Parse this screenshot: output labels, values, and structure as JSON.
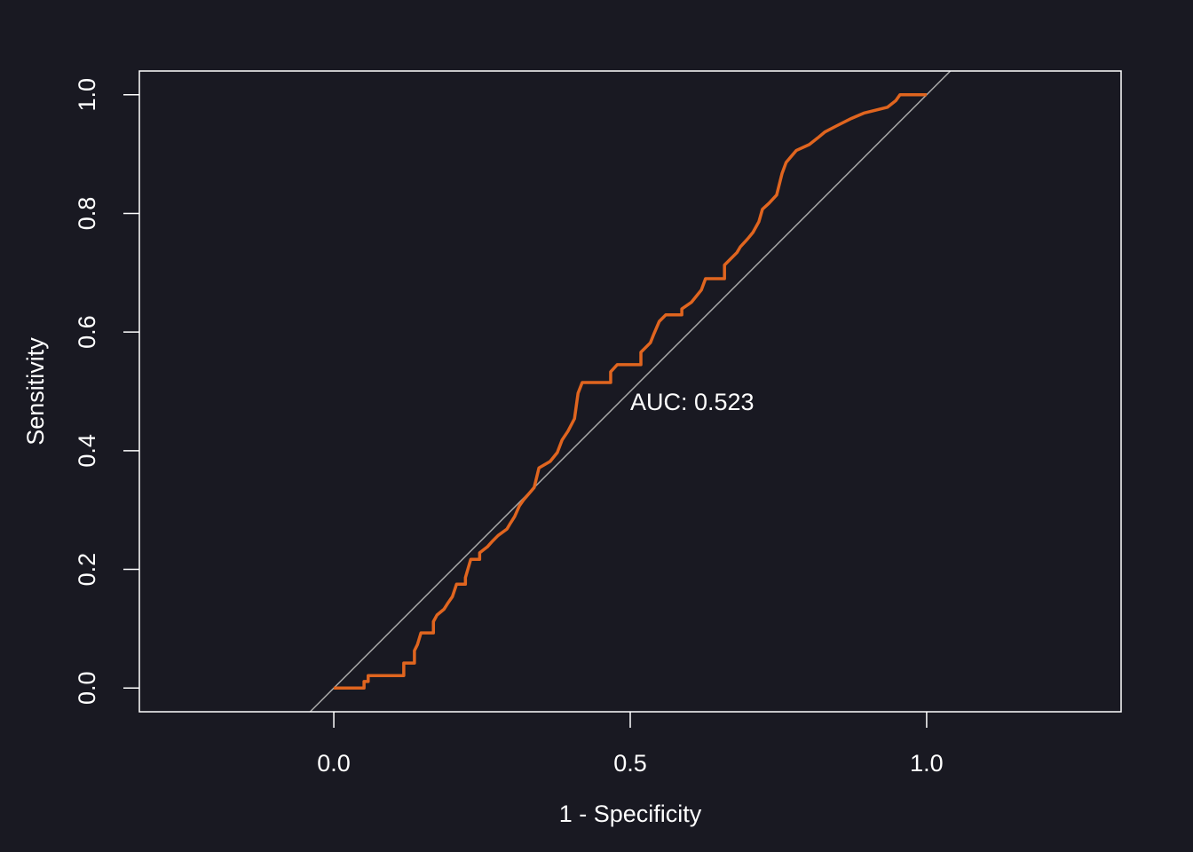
{
  "chart_data": {
    "type": "roc",
    "x_label": "1 - Specificity",
    "y_label": "Sensitivity",
    "annotation": "AUC: 0.523",
    "color": "#e0651f",
    "diagonal": true,
    "diagonal_color": "#a8a8a8",
    "xlim": [
      -0.328,
      1.328
    ],
    "ylim": [
      -0.04,
      1.04
    ],
    "xticks": [
      {
        "value": 0,
        "label": "0.0"
      },
      0.5,
      {
        "value": 1,
        "label": "1.0"
      }
    ],
    "yticks": [
      {
        "value": 0,
        "label": "0.0"
      },
      0.2,
      0.4,
      0.6,
      0.8,
      {
        "value": 1,
        "label": "1.0"
      }
    ],
    "x": [
      0,
      0.051,
      0.051,
      0.058,
      0.058,
      0.118,
      0.118,
      0.136,
      0.136,
      0.141,
      0.147,
      0.168,
      0.168,
      0.174,
      0.186,
      0.193,
      0.2,
      0.207,
      0.222,
      0.222,
      0.231,
      0.246,
      0.246,
      0.259,
      0.268,
      0.277,
      0.292,
      0.298,
      0.305,
      0.313,
      0.32,
      0.338,
      0.346,
      0.365,
      0.377,
      0.385,
      0.395,
      0.406,
      0.412,
      0.419,
      0.467,
      0.467,
      0.478,
      0.518,
      0.518,
      0.534,
      0.54,
      0.549,
      0.56,
      0.587,
      0.587,
      0.603,
      0.62,
      0.627,
      0.659,
      0.659,
      0.68,
      0.686,
      0.698,
      0.707,
      0.717,
      0.723,
      0.734,
      0.747,
      0.756,
      0.763,
      0.78,
      0.802,
      0.816,
      0.828,
      0.849,
      0.873,
      0.894,
      0.934,
      0.948,
      0.955,
      1.0
    ],
    "values": [
      0,
      0,
      0.011,
      0.011,
      0.021,
      0.021,
      0.042,
      0.042,
      0.063,
      0.073,
      0.093,
      0.093,
      0.112,
      0.123,
      0.133,
      0.144,
      0.154,
      0.175,
      0.175,
      0.186,
      0.217,
      0.217,
      0.228,
      0.238,
      0.248,
      0.257,
      0.268,
      0.278,
      0.289,
      0.307,
      0.317,
      0.338,
      0.371,
      0.382,
      0.397,
      0.418,
      0.433,
      0.454,
      0.497,
      0.515,
      0.515,
      0.533,
      0.545,
      0.545,
      0.566,
      0.582,
      0.597,
      0.618,
      0.629,
      0.629,
      0.639,
      0.65,
      0.671,
      0.69,
      0.69,
      0.713,
      0.734,
      0.744,
      0.757,
      0.768,
      0.786,
      0.807,
      0.817,
      0.831,
      0.867,
      0.886,
      0.906,
      0.916,
      0.927,
      0.937,
      0.948,
      0.96,
      0.969,
      0.979,
      0.99,
      1.0,
      1.0
    ]
  }
}
